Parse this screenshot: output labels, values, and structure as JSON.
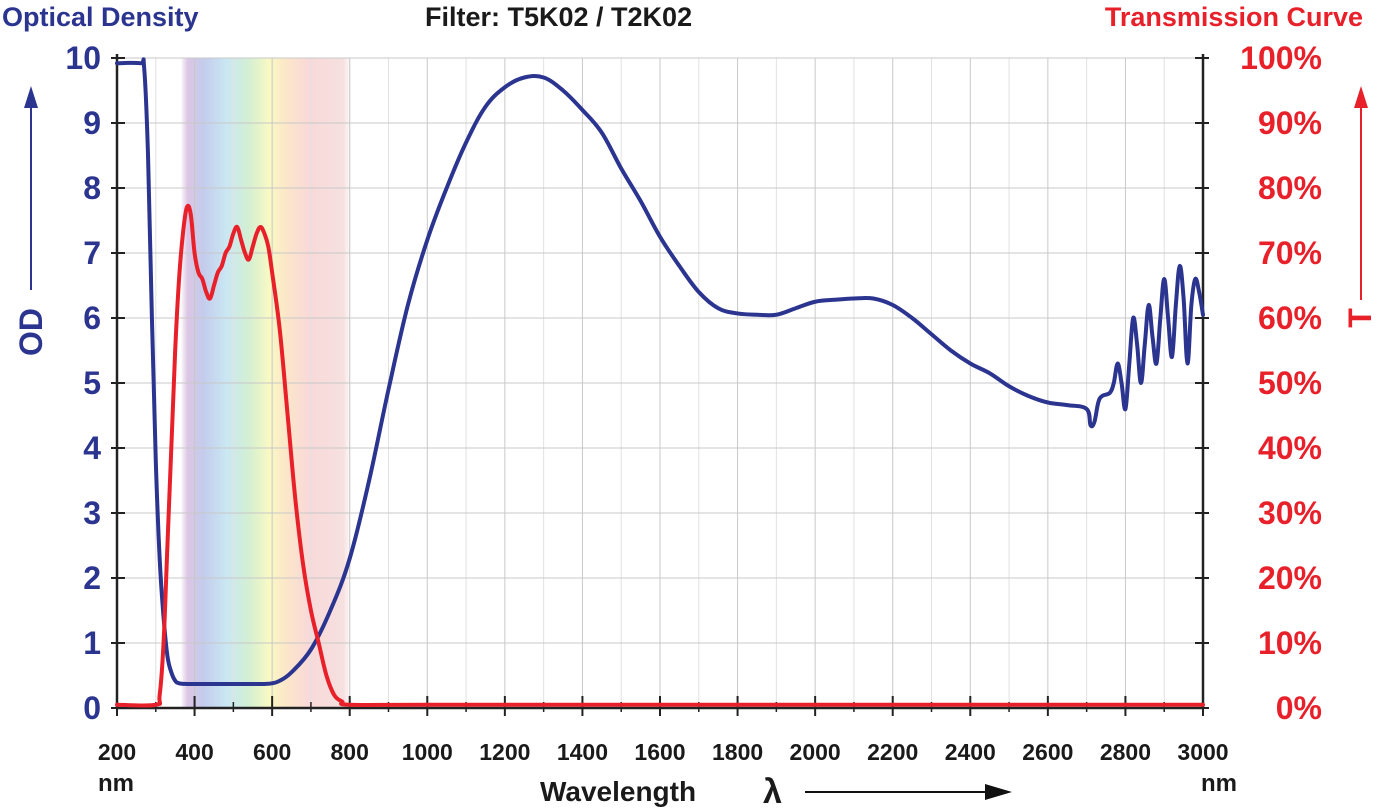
{
  "header": {
    "left": "Optical Density",
    "center": "Filter: T5K02 / T2K02",
    "right": "Transmission Curve"
  },
  "colors": {
    "od": "#2b3590",
    "transmission": "#e8202a",
    "text": "#1a1a1a",
    "grid": "#c8c8c8"
  },
  "chart_data": {
    "type": "line",
    "title": "Filter: T5K02 / T2K02",
    "xlabel": "Wavelength",
    "xlabel_symbol": "λ",
    "x_unit_left": "nm",
    "x_unit_right": "nm",
    "xlim": [
      200,
      3000
    ],
    "x_ticks": [
      200,
      400,
      600,
      800,
      1000,
      1200,
      1400,
      1600,
      1800,
      2000,
      2200,
      2400,
      2600,
      2800,
      3000
    ],
    "left_axis": {
      "label": "OD",
      "header": "Optical Density",
      "ylim": [
        0,
        10
      ],
      "ticks": [
        "0",
        "1",
        "2",
        "3",
        "4",
        "5",
        "6",
        "7",
        "8",
        "9",
        "10"
      ]
    },
    "right_axis": {
      "label": "T",
      "header": "Transmission Curve",
      "ylim": [
        0,
        100
      ],
      "ticks": [
        "0%",
        "10%",
        "20%",
        "30%",
        "40%",
        "50%",
        "60%",
        "70%",
        "80%",
        "90%",
        "100%"
      ]
    },
    "grid": true,
    "visible_band": {
      "range": [
        380,
        790
      ]
    },
    "series": [
      {
        "name": "Optical Density",
        "axis": "left",
        "color": "#2b3590",
        "x": [
          200,
          260,
          270,
          280,
          290,
          300,
          310,
          320,
          330,
          340,
          350,
          360,
          380,
          400,
          450,
          500,
          550,
          580,
          600,
          620,
          650,
          700,
          750,
          800,
          850,
          900,
          950,
          1000,
          1050,
          1100,
          1150,
          1200,
          1250,
          1300,
          1350,
          1400,
          1450,
          1500,
          1550,
          1600,
          1650,
          1700,
          1750,
          1800,
          1850,
          1900,
          1950,
          2000,
          2050,
          2100,
          2150,
          2200,
          2250,
          2300,
          2350,
          2400,
          2450,
          2500,
          2550,
          2600,
          2650,
          2700,
          2710,
          2720,
          2730,
          2740,
          2760,
          2770,
          2780,
          2790,
          2800,
          2810,
          2820,
          2830,
          2840,
          2850,
          2860,
          2870,
          2880,
          2890,
          2900,
          2910,
          2920,
          2930,
          2940,
          2950,
          2960,
          2970,
          2980,
          2990,
          3000
        ],
        "y": [
          9.92,
          9.92,
          9.85,
          8.5,
          6.0,
          3.8,
          2.3,
          1.4,
          0.8,
          0.55,
          0.42,
          0.38,
          0.37,
          0.37,
          0.37,
          0.37,
          0.37,
          0.37,
          0.38,
          0.42,
          0.55,
          0.9,
          1.5,
          2.3,
          3.5,
          4.9,
          6.2,
          7.2,
          8.0,
          8.7,
          9.25,
          9.55,
          9.7,
          9.7,
          9.5,
          9.2,
          8.85,
          8.3,
          7.8,
          7.25,
          6.8,
          6.4,
          6.15,
          6.07,
          6.05,
          6.05,
          6.15,
          6.25,
          6.28,
          6.3,
          6.3,
          6.2,
          6.0,
          5.75,
          5.5,
          5.3,
          5.15,
          4.95,
          4.8,
          4.7,
          4.66,
          4.6,
          4.35,
          4.4,
          4.7,
          4.8,
          4.85,
          5.0,
          5.3,
          5.0,
          4.6,
          5.3,
          6.0,
          5.6,
          5.0,
          5.6,
          6.2,
          5.7,
          5.3,
          6.0,
          6.6,
          6.0,
          5.4,
          6.2,
          6.8,
          6.3,
          5.3,
          6.2,
          6.6,
          6.4,
          6.05
        ]
      },
      {
        "name": "Transmission Curve",
        "axis": "right",
        "color": "#e8202a",
        "x": [
          200,
          300,
          310,
          320,
          330,
          340,
          350,
          360,
          370,
          380,
          390,
          400,
          410,
          420,
          430,
          440,
          450,
          460,
          470,
          480,
          490,
          500,
          510,
          520,
          530,
          540,
          550,
          560,
          570,
          580,
          590,
          600,
          620,
          640,
          660,
          680,
          700,
          720,
          740,
          760,
          780,
          800,
          1000,
          1500,
          2000,
          2500,
          3000
        ],
        "y": [
          0.5,
          0.5,
          2,
          10,
          25,
          40,
          55,
          66,
          73,
          77,
          76,
          70,
          67,
          66,
          64,
          63,
          65,
          67,
          68,
          70,
          71,
          73,
          74,
          72,
          70,
          69,
          71,
          73,
          74,
          73,
          71,
          67,
          58,
          45,
          32,
          22,
          15,
          10,
          5,
          2,
          1,
          0.5,
          0.5,
          0.5,
          0.5,
          0.5,
          0.5
        ]
      }
    ]
  }
}
